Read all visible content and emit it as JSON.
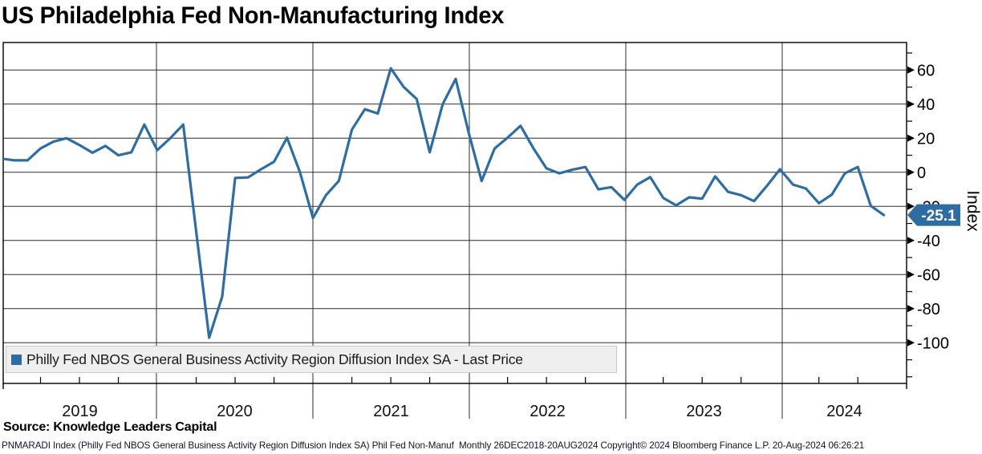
{
  "title": "US Philadelphia Fed Non-Manufacturing Index",
  "legend": {
    "marker_icon": "square-icon",
    "label": "Philly Fed NBOS General Business Activity Region Diffusion Index SA - Last Price"
  },
  "y_axis": {
    "label": "Index",
    "major_ticks": [
      60,
      40,
      20,
      0,
      -20,
      -40,
      -60,
      -80,
      -100
    ],
    "minor_ticks": [
      70,
      50,
      30,
      10,
      -10,
      -30,
      -50,
      -70,
      -90,
      -110,
      -120
    ],
    "last_price_label": "-25.1"
  },
  "x_axis": {
    "year_labels": [
      "2019",
      "2020",
      "2021",
      "2022",
      "2023",
      "2024"
    ]
  },
  "source_line": "Source: Knowledge Leaders Capital",
  "footer": "PNMARADI Index (Philly Fed NBOS General Business Activity Region Diffusion Index SA) Phil Fed Non-Manuf  Monthly 26DEC2018-20AUG2024 Copyright© 2024 Bloomberg Finance L.P. 20-Aug-2024 06:26:21",
  "colors": {
    "line": "#2e6da4",
    "badge_bg": "#2e6da4",
    "badge_text": "#ffffff",
    "legend_bg": "#efefef",
    "grid": "#2b2b2b",
    "border": "#000000"
  },
  "chart_data": {
    "type": "line",
    "title": "US Philadelphia Fed Non-Manufacturing Index",
    "series_name": "Philly Fed NBOS General Business Activity Region Diffusion Index SA - Last Price",
    "frequency": "Monthly",
    "date_range": "26DEC2018-20AUG2024",
    "x_start": "2018-12",
    "x_end": "2024-08",
    "xlabel": "",
    "ylabel": "Index",
    "ylim": [
      -124,
      76
    ],
    "grid": true,
    "legend_position": "bottom-left",
    "last_price": -25.1,
    "values": [
      8,
      7,
      7,
      14,
      18,
      20,
      16,
      11.5,
      15.5,
      10,
      11.7,
      28,
      13,
      20,
      28,
      -35,
      -97,
      -73,
      -3.3,
      -3,
      1.8,
      6.2,
      20.3,
      0,
      -26.8,
      -13.4,
      -5,
      25,
      37,
      34.5,
      61,
      50,
      43,
      11.7,
      40,
      54.8,
      23.4,
      -5.1,
      14,
      20.3,
      27.3,
      14,
      2.3,
      -0.6,
      1.5,
      3.1,
      -10,
      -8.7,
      -16.2,
      -7.2,
      -2.8,
      -15,
      -19.4,
      -14.7,
      -15.5,
      -2.4,
      -11.5,
      -13.4,
      -16.9,
      -7.9,
      1.8,
      -7.2,
      -9.5,
      -18.1,
      -13.1,
      -0.6,
      3.1,
      -19.7,
      -25.1
    ]
  }
}
